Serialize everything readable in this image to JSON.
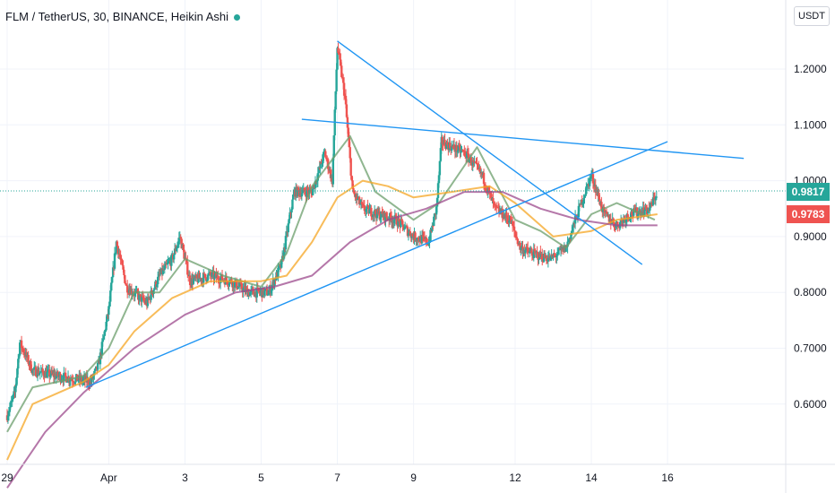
{
  "header": {
    "title": "FLM / TetherUS, 30, BINANCE, Heikin Ashi",
    "currency_button": "USDT"
  },
  "colors": {
    "up": "#26a69a",
    "down": "#ef5350",
    "trendline": "#2196f3",
    "ma_fast": "#6b9e6b",
    "ma_mid": "#f5a623",
    "ma_slow": "#9c4a8c",
    "grid": "#f0f3fa",
    "price_line": "#26a69a"
  },
  "price_badges": {
    "current": "0.9817",
    "secondary": "0.9783"
  },
  "chart_data": {
    "type": "candlestick",
    "style": "Heikin Ashi",
    "symbol": "FLM / TetherUS",
    "interval": "30",
    "exchange": "BINANCE",
    "ylim": [
      0.5,
      1.28
    ],
    "y_ticks": [
      "1.2000",
      "1.1000",
      "1.0000",
      "0.9000",
      "0.8000",
      "0.7000",
      "0.6000"
    ],
    "x_ticks": [
      "29",
      "Apr",
      "3",
      "5",
      "7",
      "9",
      "12",
      "14",
      "16"
    ],
    "x_tick_days": [
      0,
      4,
      7,
      10,
      13,
      16,
      20,
      23,
      26
    ],
    "grid": true,
    "price_anchors": [
      [
        0,
        0.58
      ],
      [
        0.3,
        0.62
      ],
      [
        0.5,
        0.71
      ],
      [
        1,
        0.66
      ],
      [
        2,
        0.65
      ],
      [
        3.3,
        0.64
      ],
      [
        3.6,
        0.67
      ],
      [
        4,
        0.77
      ],
      [
        4.3,
        0.89
      ],
      [
        4.7,
        0.81
      ],
      [
        5.5,
        0.78
      ],
      [
        6,
        0.83
      ],
      [
        6.5,
        0.86
      ],
      [
        6.8,
        0.9
      ],
      [
        7.2,
        0.82
      ],
      [
        8,
        0.83
      ],
      [
        8.8,
        0.82
      ],
      [
        9.5,
        0.8
      ],
      [
        10.3,
        0.8
      ],
      [
        10.8,
        0.85
      ],
      [
        11.3,
        0.98
      ],
      [
        12,
        0.98
      ],
      [
        12.5,
        1.05
      ],
      [
        12.8,
        1.0
      ],
      [
        13,
        1.24
      ],
      [
        13.3,
        1.15
      ],
      [
        13.6,
        0.98
      ],
      [
        14,
        0.95
      ],
      [
        14.6,
        0.94
      ],
      [
        15.3,
        0.93
      ],
      [
        16,
        0.9
      ],
      [
        16.6,
        0.89
      ],
      [
        16.9,
        0.95
      ],
      [
        17.1,
        1.07
      ],
      [
        17.5,
        1.06
      ],
      [
        18,
        1.05
      ],
      [
        18.7,
        1.01
      ],
      [
        19.2,
        0.95
      ],
      [
        19.8,
        0.93
      ],
      [
        20.2,
        0.88
      ],
      [
        20.6,
        0.87
      ],
      [
        21.4,
        0.86
      ],
      [
        22,
        0.88
      ],
      [
        22.6,
        0.96
      ],
      [
        23,
        1.01
      ],
      [
        23.5,
        0.94
      ],
      [
        24,
        0.92
      ],
      [
        24.5,
        0.94
      ],
      [
        25.3,
        0.95
      ],
      [
        25.6,
        0.98
      ]
    ],
    "moving_averages": [
      {
        "color_key": "ma_fast",
        "points": [
          [
            0,
            0.55
          ],
          [
            1,
            0.63
          ],
          [
            3,
            0.65
          ],
          [
            4,
            0.7
          ],
          [
            5,
            0.8
          ],
          [
            6,
            0.8
          ],
          [
            7,
            0.86
          ],
          [
            8.5,
            0.83
          ],
          [
            10,
            0.81
          ],
          [
            11,
            0.87
          ],
          [
            12,
            0.99
          ],
          [
            13,
            1.05
          ],
          [
            13.5,
            1.08
          ],
          [
            14.5,
            0.98
          ],
          [
            16,
            0.93
          ],
          [
            17,
            0.96
          ],
          [
            18.5,
            1.06
          ],
          [
            20,
            0.93
          ],
          [
            21,
            0.91
          ],
          [
            22,
            0.88
          ],
          [
            23,
            0.94
          ],
          [
            24,
            0.96
          ],
          [
            25.5,
            0.93
          ]
        ]
      },
      {
        "color_key": "ma_mid",
        "points": [
          [
            0,
            0.5
          ],
          [
            1,
            0.6
          ],
          [
            3,
            0.64
          ],
          [
            4,
            0.67
          ],
          [
            5,
            0.73
          ],
          [
            6.5,
            0.79
          ],
          [
            8,
            0.82
          ],
          [
            10,
            0.82
          ],
          [
            11,
            0.83
          ],
          [
            12,
            0.89
          ],
          [
            13,
            0.97
          ],
          [
            14,
            1.0
          ],
          [
            15,
            0.99
          ],
          [
            16,
            0.97
          ],
          [
            17.5,
            0.98
          ],
          [
            19,
            0.99
          ],
          [
            20,
            0.96
          ],
          [
            21.5,
            0.9
          ],
          [
            23,
            0.91
          ],
          [
            24,
            0.93
          ],
          [
            25.6,
            0.94
          ]
        ]
      },
      {
        "color_key": "ma_slow",
        "points": [
          [
            0,
            0.45
          ],
          [
            1.5,
            0.55
          ],
          [
            3,
            0.62
          ],
          [
            5,
            0.7
          ],
          [
            7,
            0.76
          ],
          [
            9,
            0.8
          ],
          [
            10.5,
            0.81
          ],
          [
            12,
            0.83
          ],
          [
            13.5,
            0.89
          ],
          [
            15,
            0.93
          ],
          [
            16.5,
            0.95
          ],
          [
            18,
            0.98
          ],
          [
            19.5,
            0.98
          ],
          [
            21,
            0.95
          ],
          [
            22.5,
            0.93
          ],
          [
            24,
            0.92
          ],
          [
            25.6,
            0.92
          ]
        ]
      }
    ],
    "trendlines": [
      {
        "from": [
          3.1,
          0.63
        ],
        "to": [
          26,
          1.07
        ]
      },
      {
        "from": [
          13,
          1.25
        ],
        "to": [
          25,
          0.85
        ]
      },
      {
        "from": [
          11.6,
          1.11
        ],
        "to": [
          29,
          1.04
        ]
      }
    ],
    "last_price_line": 0.9817
  }
}
